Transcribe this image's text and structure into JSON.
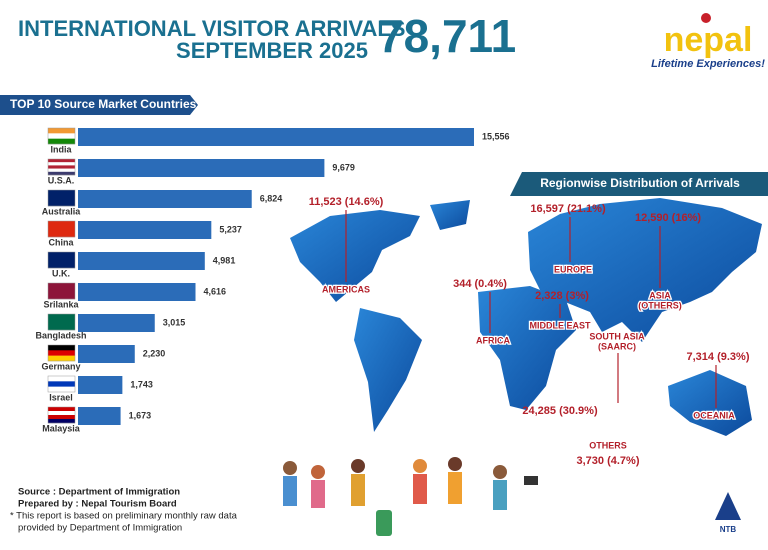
{
  "header": {
    "title_line1": "INTERNATIONAL VISITOR ARRIVALS",
    "title_line2": "SEPTEMBER 2025",
    "total": "78,711"
  },
  "logo": {
    "brand": "nepal",
    "tagline": "Lifetime Experiences!",
    "ntb": "NTB"
  },
  "chart_data": {
    "type": "hbar",
    "title": "TOP 10 Source Market Countries",
    "categories": [
      "India",
      "U.S.A.",
      "Australia",
      "China",
      "U.K.",
      "Srilanka",
      "Bangladesh",
      "Germany",
      "Israel",
      "Malaysia"
    ],
    "values": [
      15556,
      9679,
      6824,
      5237,
      4981,
      4616,
      3015,
      2230,
      1743,
      1673
    ],
    "value_labels": [
      "15,556",
      "9,679",
      "6,824",
      "5,237",
      "4,981",
      "4,616",
      "3,015",
      "2,230",
      "1,743",
      "1,673"
    ],
    "color": "#2b6cb8"
  },
  "regions": {
    "title": "Regionwise Distribution of Arrivals",
    "items": [
      {
        "name": [
          "AMERICAS"
        ],
        "label": "11,523 (14.6%)"
      },
      {
        "name": [
          "EUROPE"
        ],
        "label": "16,597 (21.1%)"
      },
      {
        "name": [
          "ASIA",
          "(OTHERS)"
        ],
        "label": "12,590 (16%)"
      },
      {
        "name": [
          "AFRICA"
        ],
        "label": "344 (0.4%)"
      },
      {
        "name": [
          "MIDDLE EAST"
        ],
        "label": "2,328 (3%)"
      },
      {
        "name": [
          "SOUTH ASIA",
          "(SAARC)"
        ],
        "label": "24,285 (30.9%)"
      },
      {
        "name": [
          "OCEANIA"
        ],
        "label": "7,314 (9.3%)"
      },
      {
        "name": [
          "OTHERS"
        ],
        "label": "3,730 (4.7%)"
      }
    ]
  },
  "footer": {
    "lines": [
      "Source : Department of Immigration",
      "Prepared by : Nepal Tourism Board",
      "* This report is based on preliminary monthly raw data",
      "provided by Department of Immigration"
    ]
  }
}
